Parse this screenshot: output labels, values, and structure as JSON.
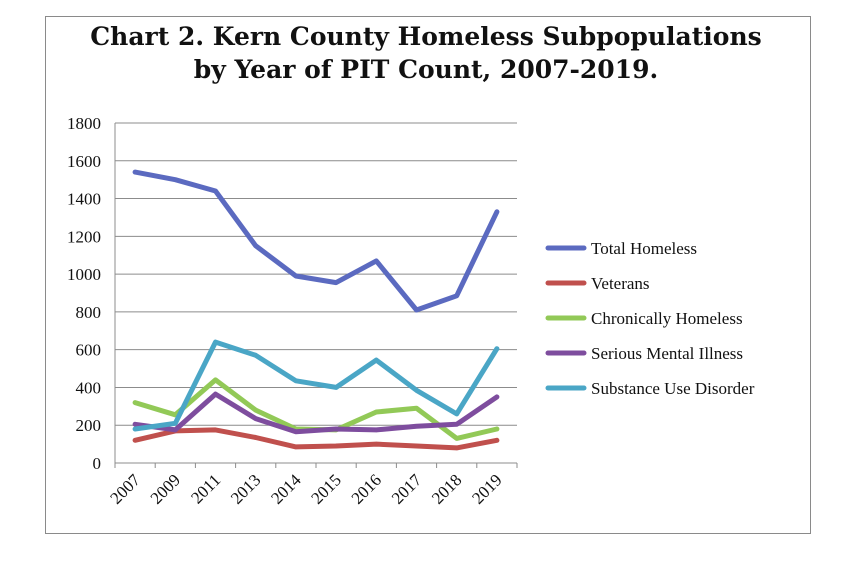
{
  "chart_data": {
    "type": "line",
    "title_line1": "Chart 2. Kern County Homeless Subpopulations",
    "title_line2": "by Year of PIT Count, 2007-2019.",
    "xlabel": "",
    "ylabel": "",
    "categories": [
      "2007",
      "2009",
      "2011",
      "2013",
      "2014",
      "2015",
      "2016",
      "2017",
      "2018",
      "2019"
    ],
    "y_ticks": [
      "0",
      "200",
      "400",
      "600",
      "800",
      "1000",
      "1200",
      "1400",
      "1600",
      "1800"
    ],
    "ylim": [
      0,
      1800
    ],
    "grid": true,
    "legend_position": "right",
    "series": [
      {
        "name": "Total Homeless",
        "color": "#5b6ac0",
        "values": [
          1540,
          1500,
          1440,
          1150,
          990,
          955,
          1070,
          810,
          885,
          1330
        ]
      },
      {
        "name": "Veterans",
        "color": "#c0504d",
        "values": [
          120,
          170,
          175,
          135,
          85,
          90,
          100,
          90,
          80,
          120
        ]
      },
      {
        "name": "Chronically Homeless",
        "color": "#92c957",
        "values": [
          320,
          255,
          440,
          280,
          180,
          175,
          270,
          290,
          130,
          180
        ]
      },
      {
        "name": "Serious Mental Illness",
        "color": "#7e4d9e",
        "values": [
          205,
          175,
          365,
          235,
          165,
          180,
          175,
          195,
          205,
          350
        ]
      },
      {
        "name": "Substance Use Disorder",
        "color": "#4aa6c6",
        "values": [
          180,
          210,
          640,
          570,
          435,
          400,
          545,
          385,
          260,
          605
        ]
      }
    ]
  }
}
